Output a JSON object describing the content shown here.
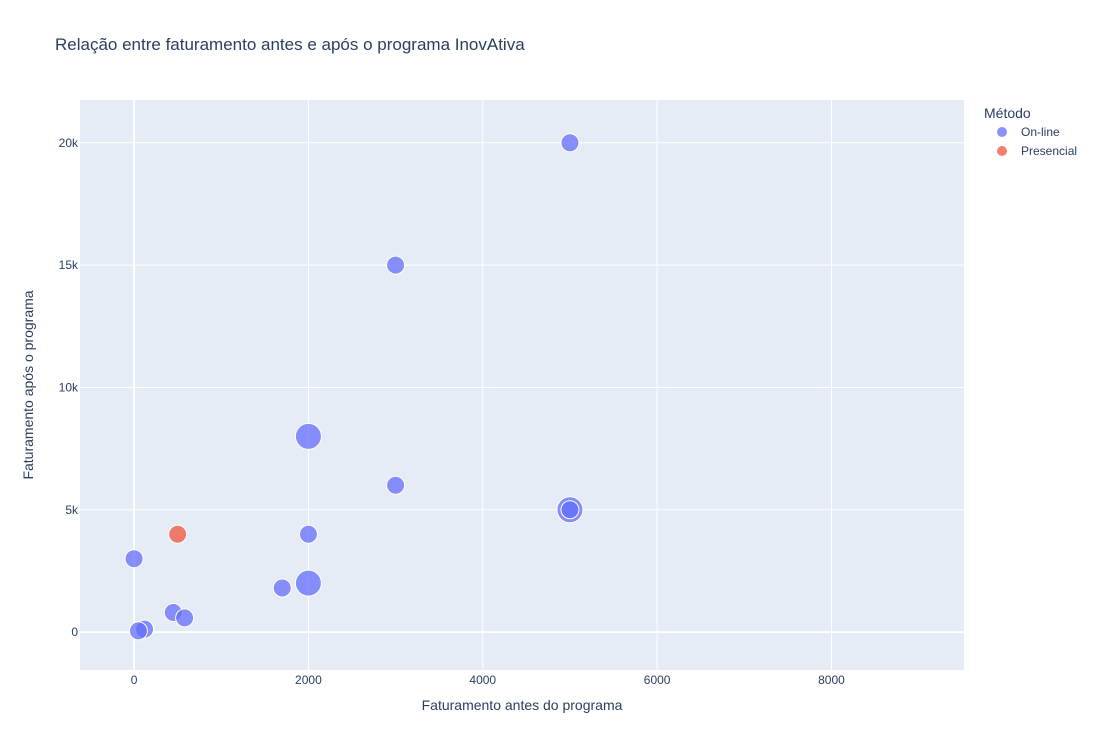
{
  "chart_data": {
    "type": "scatter",
    "title": "Relação entre faturamento antes e após o programa InovAtiva",
    "xlabel": "Faturamento antes do programa",
    "ylabel": "Faturamento após o programa",
    "xlim": [
      -620,
      9520
    ],
    "ylim": [
      -1550,
      21750
    ],
    "x_ticks": [
      {
        "value": 0,
        "label": "0"
      },
      {
        "value": 2000,
        "label": "2000"
      },
      {
        "value": 4000,
        "label": "4000"
      },
      {
        "value": 6000,
        "label": "6000"
      },
      {
        "value": 8000,
        "label": "8000"
      }
    ],
    "y_ticks": [
      {
        "value": 0,
        "label": "0"
      },
      {
        "value": 5000,
        "label": "5k"
      },
      {
        "value": 10000,
        "label": "10k"
      },
      {
        "value": 15000,
        "label": "15k"
      },
      {
        "value": 20000,
        "label": "20k"
      }
    ],
    "grid": true,
    "legend": {
      "title": "Método",
      "placement": "top-right"
    },
    "series": [
      {
        "name": "On-line",
        "color": "#636efa",
        "points": [
          {
            "x": 5000,
            "y": 20000,
            "size": 1
          },
          {
            "x": 3000,
            "y": 15000,
            "size": 1
          },
          {
            "x": 2000,
            "y": 8000,
            "size": 2
          },
          {
            "x": 3000,
            "y": 6000,
            "size": 1
          },
          {
            "x": 5000,
            "y": 5000,
            "size": 2
          },
          {
            "x": 5000,
            "y": 5000,
            "size": 1
          },
          {
            "x": 2000,
            "y": 4000,
            "size": 1
          },
          {
            "x": 0,
            "y": 3000,
            "size": 1
          },
          {
            "x": 2000,
            "y": 2000,
            "size": 2
          },
          {
            "x": 1700,
            "y": 1800,
            "size": 1
          },
          {
            "x": 450,
            "y": 800,
            "size": 1
          },
          {
            "x": 580,
            "y": 580,
            "size": 1
          },
          {
            "x": 120,
            "y": 120,
            "size": 1
          },
          {
            "x": 50,
            "y": 50,
            "size": 1
          }
        ]
      },
      {
        "name": "Presencial",
        "color": "#ef553b",
        "points": [
          {
            "x": 500,
            "y": 4000,
            "size": 1
          }
        ]
      }
    ]
  }
}
